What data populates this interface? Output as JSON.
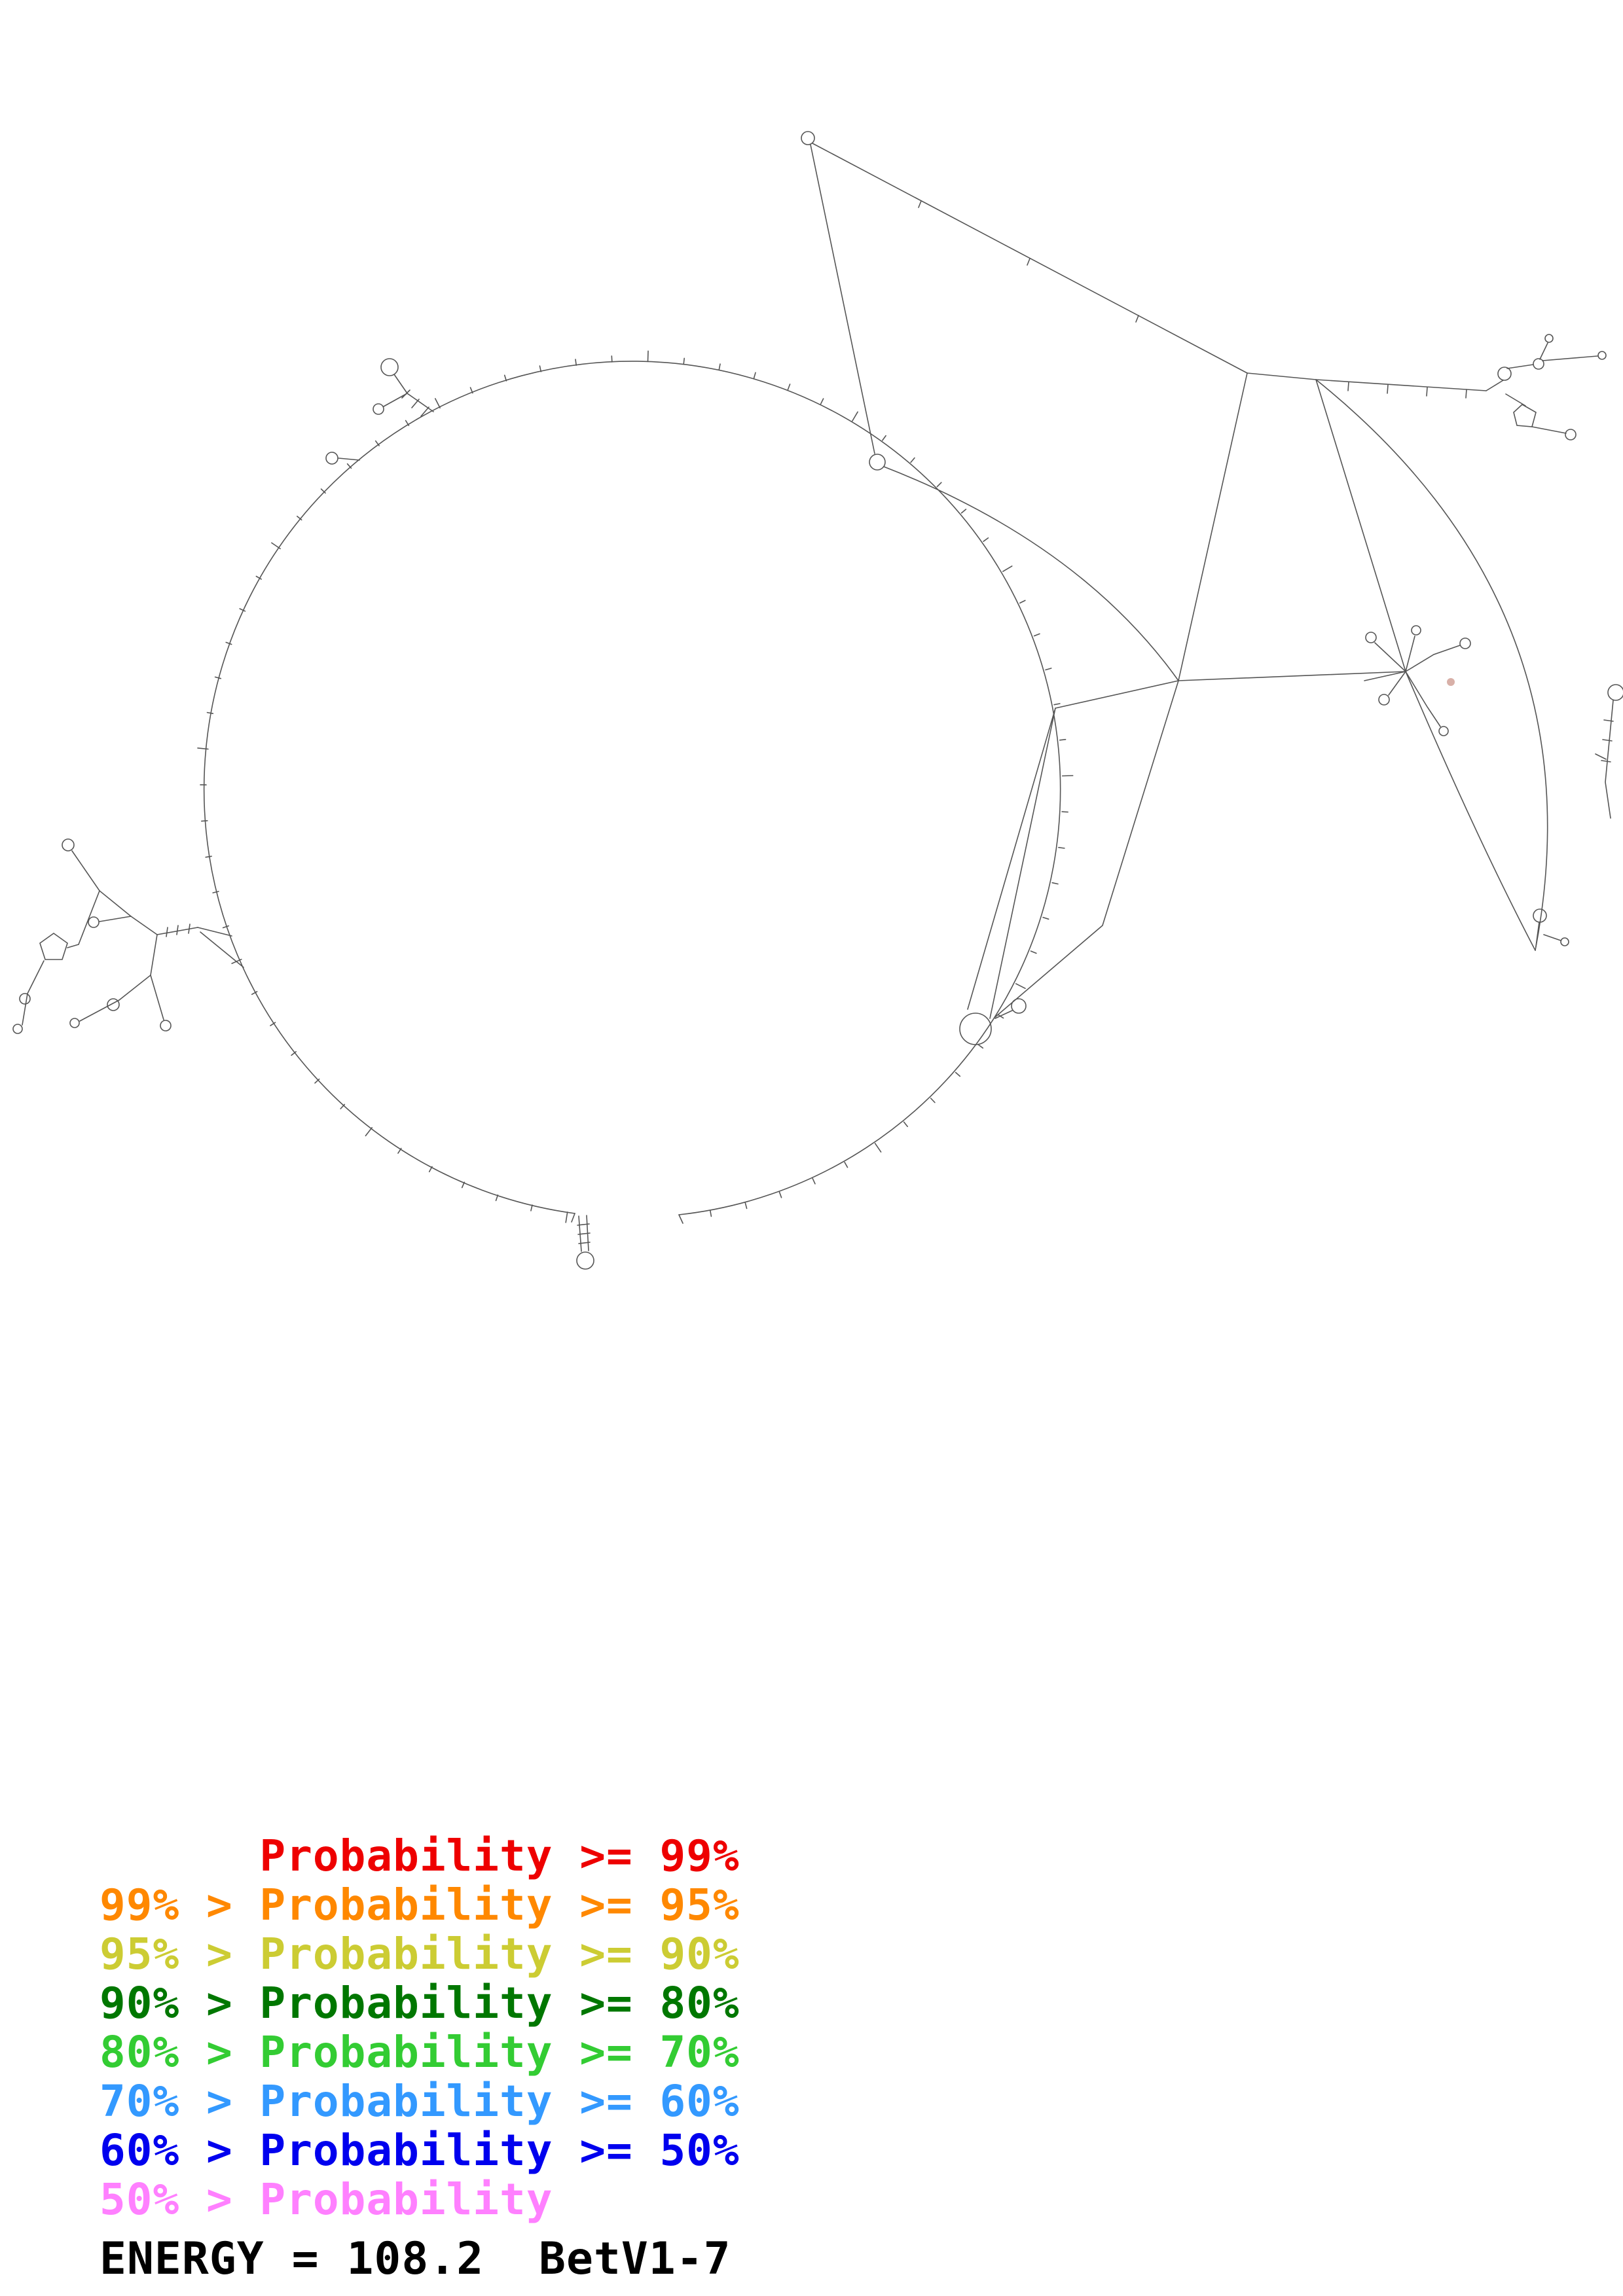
{
  "legend": {
    "items": [
      {
        "text": "      Probability >= 99%",
        "color": "#ee0000"
      },
      {
        "text": "99% > Probability >= 95%",
        "color": "#ff8800"
      },
      {
        "text": "95% > Probability >= 90%",
        "color": "#cccc33"
      },
      {
        "text": "90% > Probability >= 80%",
        "color": "#007700"
      },
      {
        "text": "80% > Probability >= 70%",
        "color": "#33cc33"
      },
      {
        "text": "70% > Probability >= 60%",
        "color": "#3399ff"
      },
      {
        "text": "60% > Probability >= 50%",
        "color": "#0000ee"
      },
      {
        "text": "50% > Probability",
        "color": "#ff80ff"
      }
    ]
  },
  "footer": {
    "energy_label": "ENERGY = 108.2  BetV1-7"
  }
}
